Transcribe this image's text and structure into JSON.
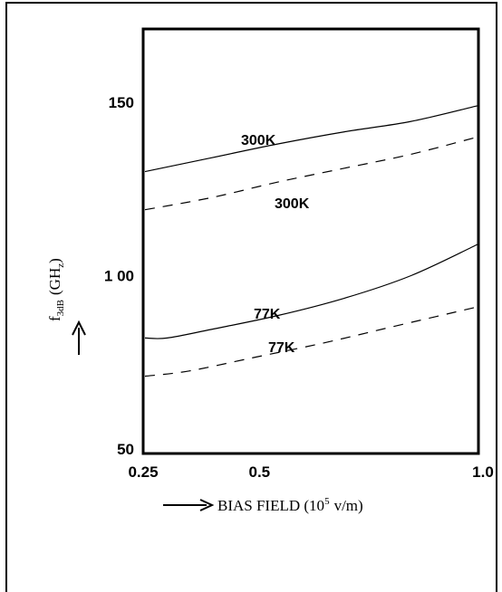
{
  "chart_data": {
    "type": "line",
    "title": "",
    "xlabel": "BIAS FIELD (10",
    "xlabel_sup": "5",
    "xlabel_unit": "v/m)",
    "ylabel": "f",
    "ylabel_sub": "3dB",
    "ylabel_unit": "(GH",
    "ylabel_unit_sub": "z",
    "ylabel_close": ")",
    "xlim": [
      0.25,
      1.0
    ],
    "ylim": [
      50,
      170
    ],
    "x_ticks": [
      "0.25",
      "0.5",
      "1.0"
    ],
    "y_ticks": [
      "50",
      "1 00",
      "150"
    ],
    "x_tick_values": [
      0.25,
      0.5,
      1.0
    ],
    "y_tick_values": [
      50,
      100,
      150
    ],
    "series": [
      {
        "label": "300K",
        "style": "solid",
        "x": [
          0.25,
          0.4,
          0.55,
          0.7,
          0.85,
          1.0
        ],
        "y": [
          130,
          134,
          138,
          141.5,
          144.5,
          149
        ]
      },
      {
        "label": "300K",
        "style": "dashed",
        "x": [
          0.25,
          0.4,
          0.55,
          0.7,
          0.85,
          1.0
        ],
        "y": [
          119,
          122.5,
          127,
          131,
          135,
          140
        ]
      },
      {
        "label": "77K",
        "style": "solid",
        "x": [
          0.25,
          0.3,
          0.4,
          0.55,
          0.7,
          0.85,
          1.0
        ],
        "y": [
          82,
          82,
          84.5,
          88.5,
          93.5,
          100,
          109
        ]
      },
      {
        "label": "77K",
        "style": "dashed",
        "x": [
          0.25,
          0.35,
          0.5,
          0.65,
          0.8,
          1.0
        ],
        "y": [
          71,
          72.5,
          76.5,
          80.5,
          85,
          91
        ]
      }
    ],
    "grid": false,
    "legend": "none"
  }
}
